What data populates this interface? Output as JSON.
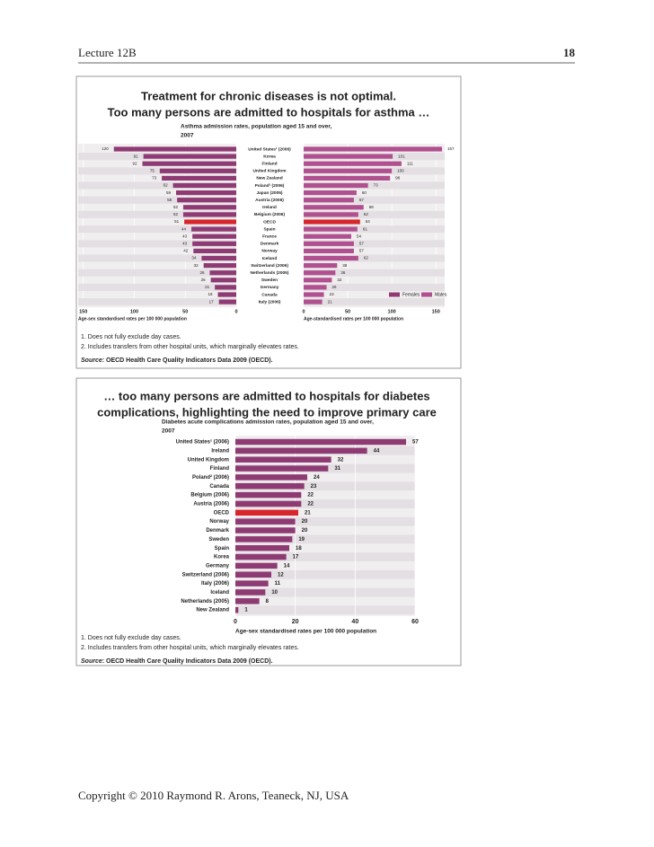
{
  "header": {
    "left": "Lecture 12B",
    "right": "18"
  },
  "chart_data": [
    {
      "type": "butterfly-bar",
      "title": [
        "Treatment for chronic diseases is not optimal.",
        "Too many persons are admitted to hospitals for asthma …"
      ],
      "subtitle": [
        "Asthma admission rates, population aged 15 and over,",
        "2007"
      ],
      "categories": [
        "United States¹ (2006)",
        "Korea",
        "Finland",
        "United Kingdom",
        "New Zealand",
        "Poland² (2006)",
        "Japan (2005)",
        "Austria (2006)",
        "Ireland",
        "Belgium (2006)",
        "OECD",
        "Spain",
        "France",
        "Denmark",
        "Norway",
        "Iceland",
        "Switzerland (2006)",
        "Netherlands (2005)",
        "Sweden",
        "Germany",
        "Canada",
        "Italy (2006)"
      ],
      "series": [
        {
          "name": "Females",
          "color": "#8e3a73",
          "values": [
            120,
            91,
            92,
            75,
            73,
            62,
            59,
            58,
            52,
            52,
            51,
            44,
            43,
            43,
            42,
            34,
            32,
            26,
            25,
            21,
            18,
            17
          ]
        },
        {
          "name": "Males",
          "color": "#b0508f",
          "axis": "x2",
          "values": [
            157,
            101,
            111,
            100,
            98,
            73,
            60,
            57,
            68,
            62,
            64,
            61,
            54,
            57,
            57,
            62,
            38,
            36,
            32,
            26,
            23,
            21
          ]
        }
      ],
      "highlight_index": 10,
      "highlight_color": "#d7262b",
      "xlim": [
        155,
        0
      ],
      "xticks": [
        150,
        100,
        50,
        0
      ],
      "x2lim": [
        0,
        160
      ],
      "x2ticks": [
        0,
        50,
        100,
        150
      ],
      "xlabel": "Age-sex standardised rates per 100 000 population",
      "x2label": "Age-standardised rates per 100 000 population",
      "notes": [
        "1. Does not fully exclude day cases.",
        "2. Includes transfers from other hospital units, which marginally elevates rates."
      ],
      "source": {
        "label": "Source",
        "text": ": OECD Health Care Quality Indicators Data 2009 (OECD)."
      }
    },
    {
      "type": "bar",
      "title": [
        "… too many persons are admitted to hospitals for diabetes",
        "complications, highlighting the need to improve primary care"
      ],
      "subtitle": [
        "Diabetes acute complications admission rates, population aged 15 and over,",
        "2007"
      ],
      "categories": [
        "United States¹ (2006)",
        "Ireland",
        "United Kingdom",
        "Finland",
        "Poland² (2006)",
        "Canada",
        "Belgium (2006)",
        "Austria (2006)",
        "OECD",
        "Norway",
        "Denmark",
        "Sweden",
        "Spain",
        "Korea",
        "Germany",
        "Switzerland (2006)",
        "Italy (2006)",
        "Iceland",
        "Netherlands (2005)",
        "New Zealand"
      ],
      "values": [
        57,
        44,
        32,
        31,
        24,
        23,
        22,
        22,
        21,
        20,
        20,
        19,
        18,
        17,
        14,
        12,
        11,
        10,
        8,
        1
      ],
      "color": "#8e3a73",
      "highlight_index": 8,
      "highlight_color": "#d7262b",
      "xlim": [
        0,
        60
      ],
      "xticks": [
        0,
        20,
        40,
        60
      ],
      "xlabel": "Age-sex standardised rates per 100 000 population",
      "notes": [
        "1. Does not fully exclude day cases.",
        "2. Includes transfers from other hospital units, which marginally elevates rates."
      ],
      "source": {
        "label": "Source",
        "text": ": OECD Health Care Quality Indicators Data 2009 (OECD)."
      }
    }
  ],
  "footer": "Copyright © 2010 Raymond R. Arons, Teaneck, NJ, USA"
}
